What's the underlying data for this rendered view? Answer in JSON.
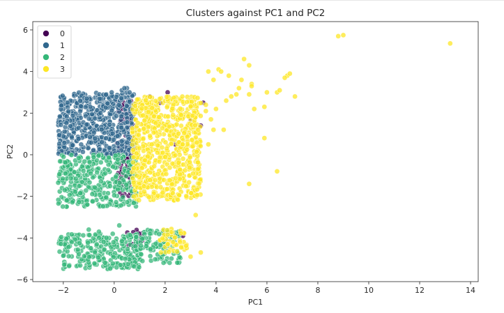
{
  "chart_data": {
    "type": "scatter",
    "title": "Clusters against PC1 and PC2",
    "xlabel": "PC1",
    "ylabel": "PC2",
    "xlim": [
      -3.2,
      14.3
    ],
    "ylim": [
      -6.1,
      6.4
    ],
    "xticks": [
      -2,
      0,
      2,
      4,
      6,
      8,
      10,
      12,
      14
    ],
    "yticks": [
      -6,
      -4,
      -2,
      0,
      2,
      4,
      6
    ],
    "grid": false,
    "legend": {
      "position": "top-left",
      "entries": [
        {
          "label": "0",
          "color": "#440154"
        },
        {
          "label": "1",
          "color": "#31688e"
        },
        {
          "label": "2",
          "color": "#35b779"
        },
        {
          "label": "3",
          "color": "#fde725"
        }
      ]
    },
    "series": [
      {
        "name": "0",
        "color": "#440154",
        "regions": [
          {
            "x": [
              0.1,
              0.8
            ],
            "y": [
              -2.0,
              2.6
            ],
            "n": 160
          },
          {
            "x": [
              0.5,
              1.1
            ],
            "y": [
              -4.5,
              -3.6
            ],
            "n": 18
          }
        ],
        "x": [
          1.4,
          1.8,
          2.1,
          3.0,
          3.5,
          3.4,
          2.4,
          2.7
        ],
        "y": [
          2.8,
          2.5,
          3.0,
          1.7,
          2.5,
          1.4,
          0.5,
          -3.9
        ]
      },
      {
        "name": "1",
        "color": "#31688e",
        "regions": [
          {
            "x": [
              -2.2,
              0.8
            ],
            "y": [
              0.0,
              3.0
            ],
            "n": 560
          }
        ],
        "x": [
          0.3,
          0.5,
          0.6,
          0.4,
          -0.1
        ],
        "y": [
          3.1,
          3.2,
          3.0,
          3.2,
          3.0
        ]
      },
      {
        "name": "2",
        "color": "#35b779",
        "regions": [
          {
            "x": [
              -2.2,
              0.9
            ],
            "y": [
              -2.5,
              0.0
            ],
            "n": 340
          },
          {
            "x": [
              -2.2,
              1.0
            ],
            "y": [
              -5.5,
              -3.8
            ],
            "n": 260
          },
          {
            "x": [
              1.0,
              2.6
            ],
            "y": [
              -5.2,
              -3.6
            ],
            "n": 100
          }
        ],
        "x": [
          -1.0,
          -0.6,
          0.2
        ],
        "y": [
          -3.6,
          -3.7,
          -3.4
        ]
      },
      {
        "name": "3",
        "color": "#fde725",
        "regions": [
          {
            "x": [
              0.7,
              3.4
            ],
            "y": [
              -2.2,
              2.8
            ],
            "n": 700
          },
          {
            "x": [
              1.8,
              2.9
            ],
            "y": [
              -4.7,
              -3.5
            ],
            "n": 45
          }
        ],
        "x": [
          8.8,
          9.0,
          13.2,
          5.1,
          5.3,
          5.0,
          5.4,
          4.5,
          4.1,
          4.2,
          3.7,
          3.9,
          4.9,
          6.4,
          6.8,
          6.9,
          6.7,
          7.1,
          6.5,
          5.4,
          6.0,
          5.9,
          5.3,
          5.5,
          3.6,
          3.8,
          3.3,
          4.4,
          4.6,
          4.8,
          4.0,
          3.6,
          3.9,
          4.3,
          3.7,
          5.9,
          6.4,
          5.3,
          3.2,
          3.0,
          3.4
        ],
        "y": [
          5.7,
          5.75,
          5.35,
          4.6,
          4.3,
          3.6,
          3.4,
          3.8,
          4.1,
          4.0,
          4.0,
          3.6,
          3.2,
          3.0,
          3.8,
          3.9,
          3.7,
          2.8,
          3.1,
          3.3,
          3.0,
          2.3,
          2.9,
          2.2,
          2.1,
          1.7,
          1.2,
          2.6,
          2.8,
          2.9,
          2.2,
          2.4,
          1.2,
          1.2,
          0.5,
          0.8,
          -0.8,
          -1.4,
          -2.9,
          -4.9,
          -4.7
        ]
      }
    ]
  }
}
